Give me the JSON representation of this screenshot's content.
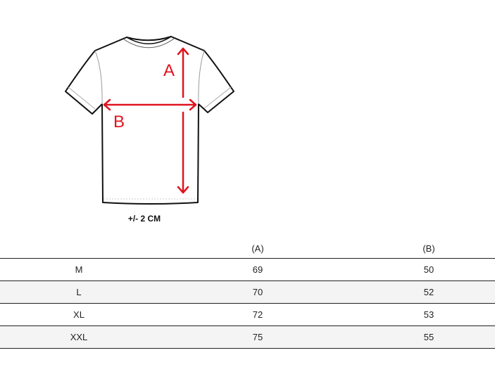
{
  "diagram": {
    "label_a": "A",
    "label_b": "B",
    "tolerance": "+/-  2 CM",
    "arrow_color": "#e0141e"
  },
  "table": {
    "headers": [
      "",
      "(A)",
      "(B)"
    ],
    "rows": [
      [
        "M",
        "69",
        "50"
      ],
      [
        "L",
        "70",
        "52"
      ],
      [
        "XL",
        "72",
        "53"
      ],
      [
        "XXL",
        "75",
        "55"
      ]
    ]
  }
}
